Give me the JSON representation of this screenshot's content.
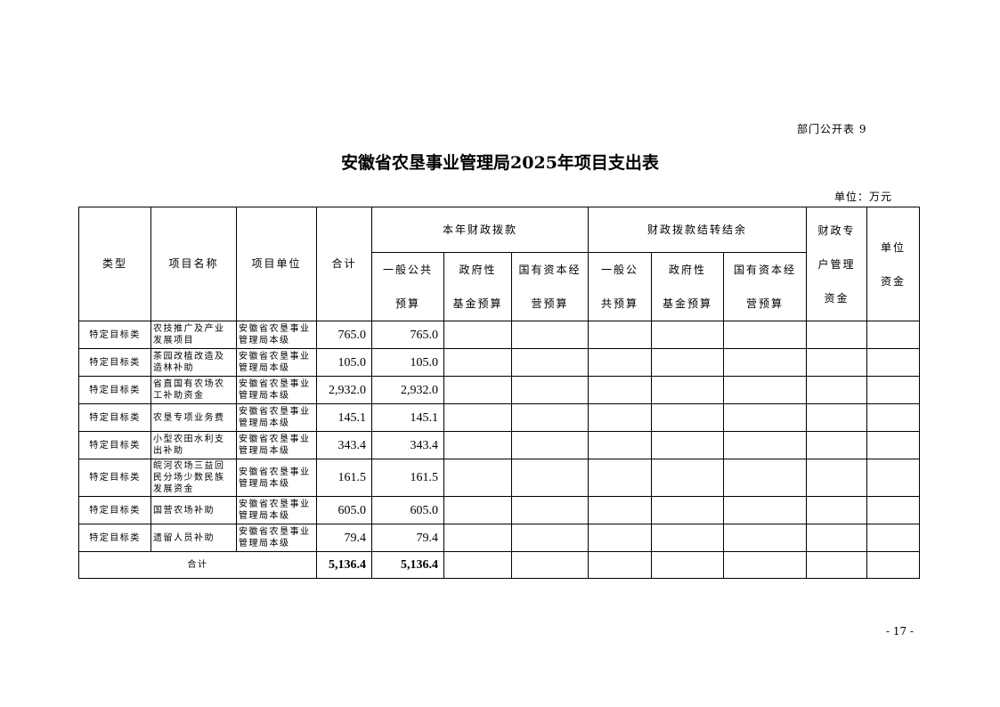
{
  "doc": {
    "tag": "部门公开表 9",
    "title": "安徽省农垦事业管理局2025年项目支出表",
    "unit": "单位：万元",
    "page_number": "- 17 -"
  },
  "table": {
    "headers": {
      "type": "类型",
      "name": "项目名称",
      "unit": "项目单位",
      "total": "合计",
      "group1": "本年财政拨款",
      "group2": "财政拨款结转结余",
      "special": [
        "财政专",
        "户管理",
        "资金"
      ],
      "own": [
        "单位",
        "资金"
      ],
      "g1_cols": [
        [
          "一般公共",
          "预算"
        ],
        [
          "政府性",
          "基金预算"
        ],
        [
          "国有资本经",
          "营预算"
        ]
      ],
      "g2_cols": [
        [
          "一般公",
          "共预算"
        ],
        [
          "政府性",
          "基金预算"
        ],
        [
          "国有资本经",
          "营预算"
        ]
      ]
    },
    "rows": [
      {
        "type": "特定目标类",
        "name": "农技推广及产业发展项目",
        "unit": "安徽省农垦事业管理局本级",
        "total": "765.0",
        "general": "765.0"
      },
      {
        "type": "特定目标类",
        "name": "茶园改植改造及造林补助",
        "unit": "安徽省农垦事业管理局本级",
        "total": "105.0",
        "general": "105.0"
      },
      {
        "type": "特定目标类",
        "name": "省直国有农场农工补助资金",
        "unit": "安徽省农垦事业管理局本级",
        "total": "2,932.0",
        "general": "2,932.0"
      },
      {
        "type": "特定目标类",
        "name": "农垦专项业务费",
        "unit": "安徽省农垦事业管理局本级",
        "total": "145.1",
        "general": "145.1"
      },
      {
        "type": "特定目标类",
        "name": "小型农田水利支出补助",
        "unit": "安徽省农垦事业管理局本级",
        "total": "343.4",
        "general": "343.4"
      },
      {
        "type": "特定目标类",
        "name": "皖河农场三益回民分场少数民族发展资金",
        "unit": "安徽省农垦事业管理局本级",
        "total": "161.5",
        "general": "161.5"
      },
      {
        "type": "特定目标类",
        "name": "国营农场补助",
        "unit": "安徽省农垦事业管理局本级",
        "total": "605.0",
        "general": "605.0"
      },
      {
        "type": "特定目标类",
        "name": "遗留人员补助",
        "unit": "安徽省农垦事业管理局本级",
        "total": "79.4",
        "general": "79.4"
      }
    ],
    "footer": {
      "label": "合计",
      "total": "5,136.4",
      "general": "5,136.4"
    }
  }
}
